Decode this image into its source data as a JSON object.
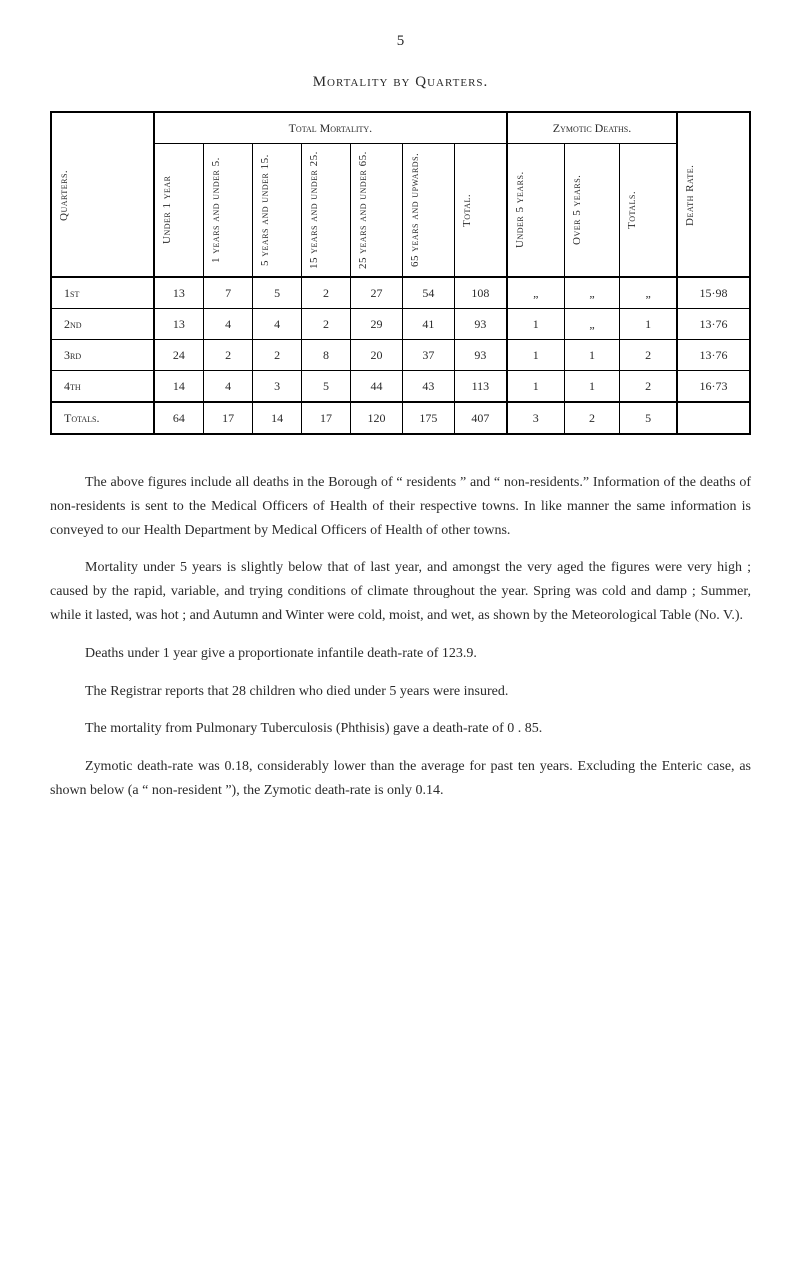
{
  "page_number": "5",
  "table_title": "Mortality by Quarters.",
  "table": {
    "group_headers": {
      "total_mortality": "Total Mortality.",
      "zymotic_deaths": "Zymotic Deaths."
    },
    "column_headers": {
      "quarters": "Quarters.",
      "under_1": "Under 1 year",
      "y1_5": "1 years and under 5.",
      "y5_15": "5 years and under 15.",
      "y15_25": "15 years and under 25.",
      "y25_65": "25 years and under 65.",
      "y65_up": "65 years and upwards.",
      "total": "Total.",
      "zym_under5": "Under 5 years.",
      "zym_over5": "Over 5 years.",
      "zym_totals": "Totals.",
      "death_rate": "Death Rate."
    },
    "rows": [
      {
        "label": "1st",
        "c": [
          "13",
          "7",
          "5",
          "2",
          "27",
          "54",
          "108",
          "„",
          "„",
          "„",
          "15·98"
        ]
      },
      {
        "label": "2nd",
        "c": [
          "13",
          "4",
          "4",
          "2",
          "29",
          "41",
          "93",
          "1",
          "„",
          "1",
          "13·76"
        ]
      },
      {
        "label": "3rd",
        "c": [
          "24",
          "2",
          "2",
          "8",
          "20",
          "37",
          "93",
          "1",
          "1",
          "2",
          "13·76"
        ]
      },
      {
        "label": "4th",
        "c": [
          "14",
          "4",
          "3",
          "5",
          "44",
          "43",
          "113",
          "1",
          "1",
          "2",
          "16·73"
        ]
      }
    ],
    "totals_row": {
      "label": "Totals.",
      "c": [
        "64",
        "17",
        "14",
        "17",
        "120",
        "175",
        "407",
        "3",
        "2",
        "5",
        ""
      ]
    }
  },
  "paragraphs": {
    "p1": "The above figures include all deaths in the Borough of “ residents ” and “ non-residents.” Information of the deaths of non-residents is sent to the Medical Officers of Health of their respective towns. In like manner the same information is conveyed to our Health Department by Medical Officers of Health of other towns.",
    "p2": "Mortality under 5 years is slightly below that of last year, and amongst the very aged the figures were very high ; caused by the rapid, variable, and trying conditions of climate throughout the year. Spring was cold and damp ; Summer, while it lasted, was hot ; and Autumn and Winter were cold, moist, and wet, as shown by the Meteorological Table (No. V.).",
    "p3": "Deaths under 1 year give a proportionate infantile death-rate of 123.9.",
    "p4": "The Registrar reports that 28 children who died under 5 years were insured.",
    "p5": "The mortality from Pulmonary Tuberculosis (Phthisis) gave a death-rate of 0 . 85.",
    "p6": "Zymotic death-rate was 0.18, considerably lower than the average for past ten years. Excluding the Enteric case, as shown below (a “ non-resident ”), the Zymotic death-rate is only 0.14."
  },
  "styling": {
    "background_color": "#ffffff",
    "text_color": "#2a2a2a",
    "border_color": "#000000",
    "body_font_size": 14,
    "table_font_size": 12,
    "header_font_size": 11
  }
}
